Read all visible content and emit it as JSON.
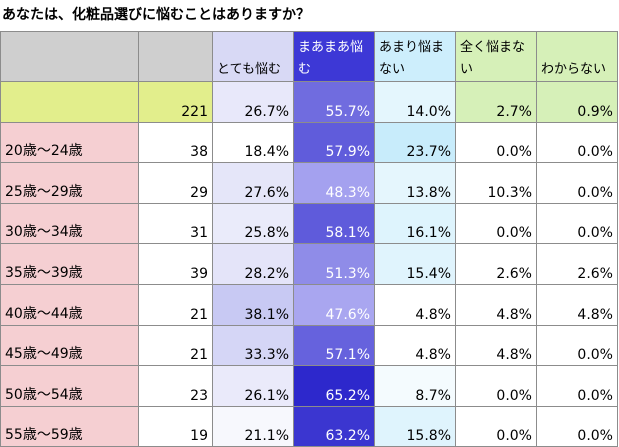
{
  "title": "あなたは、化粧品選びに悩むことはありますか？",
  "chart_data": {
    "type": "table",
    "title": "あなたは、化粧品選びに悩むことはありますか？",
    "columns": [
      "",
      "",
      "とても悩む",
      "まあまあ悩む",
      "あまり悩まない",
      "全く悩まない",
      "わからない"
    ],
    "rows": [
      {
        "label": "",
        "n": "221",
        "values": [
          "26.7%",
          "55.7%",
          "14.0%",
          "2.7%",
          "0.9%"
        ]
      },
      {
        "label": "20歳～24歳",
        "n": "38",
        "values": [
          "18.4%",
          "57.9%",
          "23.7%",
          "0.0%",
          "0.0%"
        ]
      },
      {
        "label": "25歳～29歳",
        "n": "29",
        "values": [
          "27.6%",
          "48.3%",
          "13.8%",
          "10.3%",
          "0.0%"
        ]
      },
      {
        "label": "30歳～34歳",
        "n": "31",
        "values": [
          "25.8%",
          "58.1%",
          "16.1%",
          "0.0%",
          "0.0%"
        ]
      },
      {
        "label": "35歳～39歳",
        "n": "39",
        "values": [
          "28.2%",
          "51.3%",
          "15.4%",
          "2.6%",
          "2.6%"
        ]
      },
      {
        "label": "40歳～44歳",
        "n": "21",
        "values": [
          "38.1%",
          "47.6%",
          "4.8%",
          "4.8%",
          "4.8%"
        ]
      },
      {
        "label": "45歳～49歳",
        "n": "21",
        "values": [
          "33.3%",
          "57.1%",
          "4.8%",
          "4.8%",
          "0.0%"
        ]
      },
      {
        "label": "50歳～54歳",
        "n": "23",
        "values": [
          "26.1%",
          "65.2%",
          "8.7%",
          "0.0%",
          "0.0%"
        ]
      },
      {
        "label": "55歳～59歳",
        "n": "19",
        "values": [
          "21.1%",
          "63.2%",
          "15.8%",
          "0.0%",
          "0.0%"
        ]
      }
    ],
    "heat": {
      "col1": {
        "low": "#ffffff",
        "high": "#c8c9f3"
      },
      "col2": {
        "low": "#a9a6f0",
        "high": "#2d28cc"
      },
      "col3": {
        "low": "#ffffff",
        "high": "#c8ecfb"
      }
    }
  }
}
